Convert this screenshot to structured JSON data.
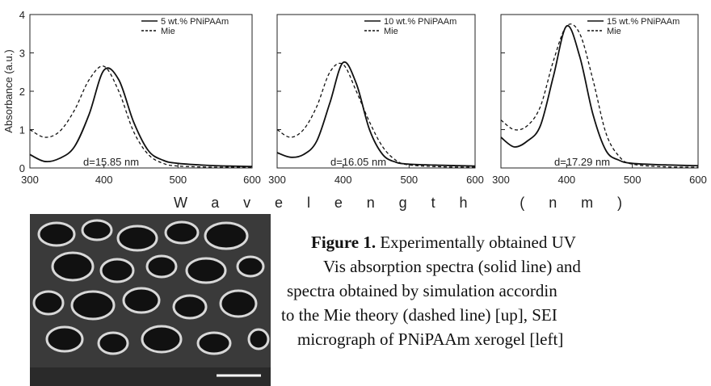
{
  "chart_data": [
    {
      "type": "line",
      "ylabel": "Absorbance (a.u.)",
      "annotation": "d=15.85 nm",
      "x": [
        300,
        320,
        340,
        360,
        380,
        400,
        420,
        440,
        460,
        480,
        500,
        550,
        600
      ],
      "series": [
        {
          "name": "5 wt.% PNiPAAm",
          "color": "#111111",
          "dash": false,
          "values": [
            0.35,
            0.17,
            0.25,
            0.55,
            1.4,
            2.55,
            2.3,
            1.2,
            0.45,
            0.2,
            0.12,
            0.06,
            0.04
          ]
        },
        {
          "name": "Mie",
          "color": "#111111",
          "dash": true,
          "values": [
            1.0,
            0.8,
            0.95,
            1.5,
            2.3,
            2.65,
            2.0,
            0.95,
            0.35,
            0.12,
            0.05,
            0.02,
            0.02
          ]
        }
      ],
      "xlim": [
        300,
        600
      ],
      "xticks": [
        300,
        400,
        500,
        600
      ],
      "ylim": [
        0,
        4
      ],
      "yticks": [
        0,
        1,
        2,
        3,
        4
      ],
      "ytick_labels": true
    },
    {
      "type": "line",
      "annotation": "d=16.05 nm",
      "x": [
        300,
        320,
        340,
        360,
        380,
        400,
        420,
        440,
        460,
        480,
        500,
        550,
        600
      ],
      "series": [
        {
          "name": "10 wt.% PNiPAAm",
          "color": "#111111",
          "dash": false,
          "values": [
            0.4,
            0.28,
            0.35,
            0.7,
            1.7,
            2.75,
            2.2,
            1.0,
            0.35,
            0.15,
            0.1,
            0.07,
            0.05
          ]
        },
        {
          "name": "Mie",
          "color": "#111111",
          "dash": true,
          "values": [
            1.0,
            0.8,
            1.0,
            1.6,
            2.5,
            2.7,
            2.0,
            1.2,
            0.55,
            0.2,
            0.08,
            0.03,
            0.02
          ]
        }
      ],
      "xlim": [
        300,
        600
      ],
      "xticks": [
        300,
        400,
        500,
        600
      ],
      "ylim": [
        0,
        4
      ],
      "yticks": [
        0,
        1,
        2,
        3,
        4
      ],
      "ytick_labels": false
    },
    {
      "type": "line",
      "annotation": "d=17.29 nm",
      "x": [
        300,
        320,
        340,
        360,
        380,
        400,
        420,
        440,
        460,
        480,
        500,
        550,
        600
      ],
      "series": [
        {
          "name": "15 wt.% PNiPAAm",
          "color": "#111111",
          "dash": false,
          "values": [
            0.8,
            0.55,
            0.7,
            1.1,
            2.4,
            3.7,
            2.9,
            1.4,
            0.45,
            0.2,
            0.12,
            0.08,
            0.06
          ]
        },
        {
          "name": "Mie",
          "color": "#111111",
          "dash": true,
          "values": [
            1.25,
            1.0,
            1.1,
            1.6,
            2.8,
            3.7,
            3.5,
            2.3,
            0.9,
            0.3,
            0.1,
            0.03,
            0.02
          ]
        }
      ],
      "xlim": [
        300,
        600
      ],
      "xticks": [
        300,
        400,
        500,
        600
      ],
      "ylim": [
        0,
        4
      ],
      "yticks": [
        0,
        1,
        2,
        3,
        4
      ],
      "ytick_labels": false
    }
  ],
  "shared": {
    "xlabel": "Wavelength (nm)"
  },
  "caption": {
    "label": "Figure 1.",
    "lines": [
      " Experimentally obtained UV",
      "Vis absorption spectra (solid line) and",
      "spectra obtained by simulation accordin",
      "to the Mie theory (dashed line) [up], SEI",
      "micrograph of PNiPAAm xerogel [left]"
    ]
  }
}
